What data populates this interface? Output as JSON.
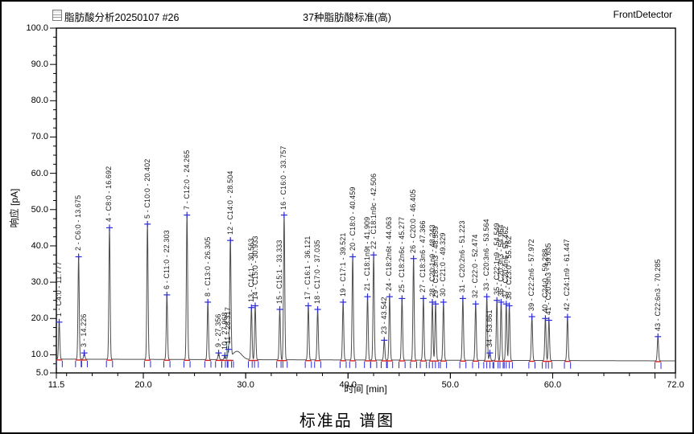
{
  "header": {
    "left_title": "脂肪酸分析20250107 #26",
    "center_title": "37种脂肪酸标准(高)",
    "right_title": "FrontDetector"
  },
  "icons": {
    "header_icon": "report-icon"
  },
  "caption": "标准品 谱图",
  "chart_data": {
    "type": "line",
    "title": "37种脂肪酸标准(高)",
    "xlabel": "时间 [min]",
    "ylabel": "响应 [pA]",
    "xlim": [
      11.5,
      72.0
    ],
    "ylim": [
      5.0,
      100.0
    ],
    "grid": false,
    "legend": null,
    "x_ticks": [
      {
        "v": 11.5,
        "label": "11.5"
      },
      {
        "v": 20.0,
        "label": "20.0"
      },
      {
        "v": 30.0,
        "label": "30.0"
      },
      {
        "v": 40.0,
        "label": "40.0"
      },
      {
        "v": 50.0,
        "label": "50.0"
      },
      {
        "v": 60.0,
        "label": "60.0"
      },
      {
        "v": 72.0,
        "label": "72.0"
      }
    ],
    "y_ticks": [
      {
        "v": 100.0,
        "label": "100.0"
      },
      {
        "v": 90.0,
        "label": "90.0"
      },
      {
        "v": 80.0,
        "label": "80.0"
      },
      {
        "v": 70.0,
        "label": "70.0"
      },
      {
        "v": 60.0,
        "label": "60.0"
      },
      {
        "v": 50.0,
        "label": "50.0"
      },
      {
        "v": 40.0,
        "label": "40.0"
      },
      {
        "v": 30.0,
        "label": "30.0"
      },
      {
        "v": 20.0,
        "label": "20.0"
      },
      {
        "v": 10.0,
        "label": "10.0"
      },
      {
        "v": 5.0,
        "label": "5.0"
      }
    ],
    "minor_tick_step": 2.5,
    "baseline_pA": 8.8,
    "peak_sigma_min": 0.06,
    "baseline_bump": {
      "center_min": 29.15,
      "sigma_min": 0.45,
      "amp_pA": 2.3
    },
    "colors": {
      "trace": "#4d4d4d",
      "marker_blue": "#2b2bd4",
      "integration_red": "#d42020",
      "event_cyan": "#00c8c8",
      "frame": "#000000"
    },
    "peaks": [
      {
        "n": 1,
        "name": "C4:0",
        "rt_min": 11.777,
        "height_pA": 19.0
      },
      {
        "n": 2,
        "name": "C6:0",
        "rt_min": 13.675,
        "height_pA": 37.0
      },
      {
        "n": 3,
        "name": "",
        "rt_min": 14.226,
        "height_pA": 10.5
      },
      {
        "n": 4,
        "name": "C8:0",
        "rt_min": 16.692,
        "height_pA": 45.0
      },
      {
        "n": 5,
        "name": "C10:0",
        "rt_min": 20.402,
        "height_pA": 46.0
      },
      {
        "n": 6,
        "name": "C11:0",
        "rt_min": 22.303,
        "height_pA": 26.5
      },
      {
        "n": 7,
        "name": "C12:0",
        "rt_min": 24.265,
        "height_pA": 48.5
      },
      {
        "n": 8,
        "name": "C13:0",
        "rt_min": 26.305,
        "height_pA": 24.5
      },
      {
        "n": 9,
        "name": "",
        "rt_min": 27.356,
        "height_pA": 10.5
      },
      {
        "n": 10,
        "name": "",
        "rt_min": 27.968,
        "height_pA": 9.8
      },
      {
        "n": 11,
        "name": "",
        "rt_min": 28.317,
        "height_pA": 11.5
      },
      {
        "n": 12,
        "name": "C14:0",
        "rt_min": 28.504,
        "height_pA": 41.5
      },
      {
        "n": 13,
        "name": "C14:1",
        "rt_min": 30.563,
        "height_pA": 23.0
      },
      {
        "n": 14,
        "name": "C15:0",
        "rt_min": 30.933,
        "height_pA": 23.5
      },
      {
        "n": 15,
        "name": "C15:1",
        "rt_min": 33.333,
        "height_pA": 22.5
      },
      {
        "n": 16,
        "name": "C16:0",
        "rt_min": 33.757,
        "height_pA": 48.5
      },
      {
        "n": 17,
        "name": "C16:1",
        "rt_min": 36.121,
        "height_pA": 23.5
      },
      {
        "n": 18,
        "name": "C17:0",
        "rt_min": 37.035,
        "height_pA": 22.5
      },
      {
        "n": 19,
        "name": "C17:1",
        "rt_min": 39.521,
        "height_pA": 24.5
      },
      {
        "n": 20,
        "name": "C18:0",
        "rt_min": 40.459,
        "height_pA": 37.0
      },
      {
        "n": 21,
        "name": "C18:1n9t",
        "rt_min": 41.909,
        "height_pA": 26.0
      },
      {
        "n": 22,
        "name": "C18:1n9c",
        "rt_min": 42.506,
        "height_pA": 37.5
      },
      {
        "n": 23,
        "name": "",
        "rt_min": 43.542,
        "height_pA": 14.0
      },
      {
        "n": 24,
        "name": "C18:2n6t",
        "rt_min": 44.063,
        "height_pA": 26.0
      },
      {
        "n": 25,
        "name": "C18:2n6c",
        "rt_min": 45.277,
        "height_pA": 25.5
      },
      {
        "n": 26,
        "name": "C20:0",
        "rt_min": 46.405,
        "height_pA": 36.5
      },
      {
        "n": 27,
        "name": "C18:3n6",
        "rt_min": 47.366,
        "height_pA": 25.5
      },
      {
        "n": 28,
        "name": "C20:1n9",
        "rt_min": 48.243,
        "height_pA": 24.5
      },
      {
        "n": 29,
        "name": "C18:3n3",
        "rt_min": 48.559,
        "height_pA": 24.0
      },
      {
        "n": 30,
        "name": "C21:0",
        "rt_min": 49.329,
        "height_pA": 24.5
      },
      {
        "n": 31,
        "name": "C20:2n6",
        "rt_min": 51.223,
        "height_pA": 25.5
      },
      {
        "n": 32,
        "name": "C22:0",
        "rt_min": 52.474,
        "height_pA": 24.0
      },
      {
        "n": 33,
        "name": "C20:3n6",
        "rt_min": 53.564,
        "height_pA": 26.0
      },
      {
        "n": 34,
        "name": "",
        "rt_min": 53.861,
        "height_pA": 10.5
      },
      {
        "n": 35,
        "name": "C22:1n9",
        "rt_min": 54.549,
        "height_pA": 25.0
      },
      {
        "n": 36,
        "name": "C20:3n3",
        "rt_min": 54.964,
        "height_pA": 24.5
      },
      {
        "n": 37,
        "name": "C20:4n6",
        "rt_min": 55.462,
        "height_pA": 24.0
      },
      {
        "n": 38,
        "name": "C23:0",
        "rt_min": 55.762,
        "height_pA": 23.5
      },
      {
        "n": 39,
        "name": "C22:2n6",
        "rt_min": 57.972,
        "height_pA": 20.5
      },
      {
        "n": 40,
        "name": "C24:0",
        "rt_min": 59.288,
        "height_pA": 20.0
      },
      {
        "n": 41,
        "name": "C20:5n3",
        "rt_min": 59.635,
        "height_pA": 19.5
      },
      {
        "n": 42,
        "name": "C24:1n9",
        "rt_min": 61.447,
        "height_pA": 20.4
      },
      {
        "n": 43,
        "name": "C22:6n3",
        "rt_min": 70.285,
        "height_pA": 15.0
      }
    ]
  }
}
